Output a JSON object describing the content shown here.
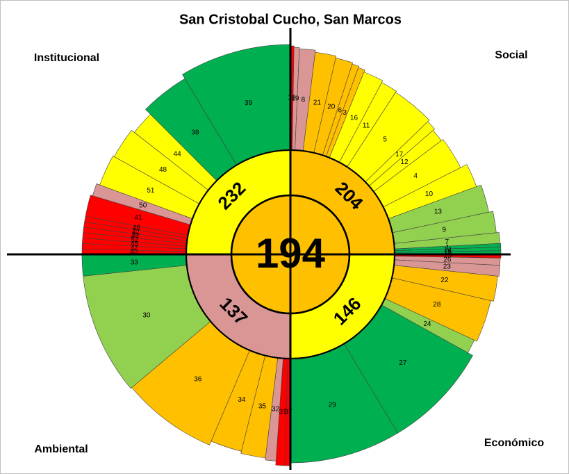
{
  "chart_data": {
    "type": "sunburst",
    "title": "San Cristobal Cucho, San Marcos",
    "center": {
      "value": 194,
      "color": "#ffc000"
    },
    "rlim": [
      0,
      310
    ],
    "quadrants": [
      {
        "name": "Social",
        "value": 204,
        "color": "#ffc000",
        "segments": [
          {
            "label": "18",
            "angle": 1,
            "value": 300,
            "color": "#ff0000"
          },
          {
            "label": "19",
            "angle": 1.5,
            "value": 298,
            "color": "#da9694"
          },
          {
            "label": "8",
            "angle": 4.5,
            "value": 296,
            "color": "#da9694"
          },
          {
            "label": "21",
            "angle": 6,
            "value": 293,
            "color": "#ffc000"
          },
          {
            "label": "20",
            "angle": 5,
            "value": 290,
            "color": "#ffc000"
          },
          {
            "label": "6",
            "angle": 2,
            "value": 288,
            "color": "#ffc000"
          },
          {
            "label": "3",
            "angle": 2,
            "value": 286,
            "color": "#ffc000"
          },
          {
            "label": "16",
            "angle": 6,
            "value": 283,
            "color": "#ffff00"
          },
          {
            "label": "11",
            "angle": 5,
            "value": 280,
            "color": "#ffff00"
          },
          {
            "label": "5",
            "angle": 13,
            "value": 278,
            "color": "#ffff00"
          },
          {
            "label": "17",
            "angle": 3,
            "value": 275,
            "color": "#ffff00"
          },
          {
            "label": "12",
            "angle": 4,
            "value": 272,
            "color": "#ffff00"
          },
          {
            "label": "4",
            "angle": 10,
            "value": 275,
            "color": "#ffff00"
          },
          {
            "label": "10",
            "angle": 7,
            "value": 285,
            "color": "#ffff00"
          },
          {
            "label": "13",
            "angle": 8,
            "value": 292,
            "color": "#92d050"
          },
          {
            "label": "9",
            "angle": 6,
            "value": 298,
            "color": "#92d050"
          },
          {
            "label": "7",
            "angle": 3,
            "value": 302,
            "color": "#92d050"
          },
          {
            "label": "1",
            "angle": 1,
            "value": 303,
            "color": "#00b050"
          },
          {
            "label": "14",
            "angle": 1,
            "value": 303,
            "color": "#00b050"
          },
          {
            "label": "15",
            "angle": 1,
            "value": 303,
            "color": "#00b050"
          }
        ]
      },
      {
        "name": "Económico",
        "value": 146,
        "color": "#ffff00",
        "segments": [
          {
            "label": "25",
            "angle": 1,
            "value": 303,
            "color": "#ff0000"
          },
          {
            "label": "26",
            "angle": 2,
            "value": 302,
            "color": "#da9694"
          },
          {
            "label": "23",
            "angle": 3,
            "value": 302,
            "color": "#da9694"
          },
          {
            "label": "22",
            "angle": 7,
            "value": 300,
            "color": "#ffc000"
          },
          {
            "label": "28",
            "angle": 12,
            "value": 296,
            "color": "#ffc000"
          },
          {
            "label": "24",
            "angle": 4,
            "value": 292,
            "color": "#92d050"
          },
          {
            "label": "27",
            "angle": 30,
            "value": 300,
            "color": "#00b050"
          },
          {
            "label": "29",
            "angle": 31,
            "value": 300,
            "color": "#00b050"
          }
        ]
      },
      {
        "name": "Ambiental",
        "value": 137,
        "color": "#da9694",
        "segments": [
          {
            "label": "37",
            "angle": 1.5,
            "value": 304,
            "color": "#ff0000"
          },
          {
            "label": "31",
            "angle": 2.5,
            "value": 304,
            "color": "#ff0000"
          },
          {
            "label": "32",
            "angle": 3,
            "value": 298,
            "color": "#da9694"
          },
          {
            "label": "35",
            "angle": 7,
            "value": 295,
            "color": "#ffc000"
          },
          {
            "label": "34",
            "angle": 9,
            "value": 292,
            "color": "#ffc000"
          },
          {
            "label": "36",
            "angle": 27,
            "value": 298,
            "color": "#ffc000"
          },
          {
            "label": "30",
            "angle": 34,
            "value": 300,
            "color": "#92d050"
          },
          {
            "label": "33",
            "angle": 6,
            "value": 300,
            "color": "#00b050"
          }
        ]
      },
      {
        "name": "Institucional",
        "value": 232,
        "color": "#ffff00",
        "segments": [
          {
            "label": "43",
            "angle": 1.5,
            "value": 300,
            "color": "#ff0000"
          },
          {
            "label": "47",
            "angle": 1.5,
            "value": 300,
            "color": "#ff0000"
          },
          {
            "label": "45",
            "angle": 1.5,
            "value": 300,
            "color": "#ff0000"
          },
          {
            "label": "52",
            "angle": 1.5,
            "value": 300,
            "color": "#ff0000"
          },
          {
            "label": "49",
            "angle": 1.5,
            "value": 300,
            "color": "#ff0000"
          },
          {
            "label": "42",
            "angle": 1.5,
            "value": 300,
            "color": "#ff0000"
          },
          {
            "label": "46",
            "angle": 1.5,
            "value": 300,
            "color": "#ff0000"
          },
          {
            "label": "41",
            "angle": 6,
            "value": 300,
            "color": "#ff0000"
          },
          {
            "label": "50",
            "angle": 3.5,
            "value": 297,
            "color": "#da9694"
          },
          {
            "label": "51",
            "angle": 9,
            "value": 292,
            "color": "#ffff00"
          },
          {
            "label": "48",
            "angle": 9,
            "value": 290,
            "color": "#ffff00"
          },
          {
            "label": "44",
            "angle": 7,
            "value": 285,
            "color": "#ffff00"
          },
          {
            "label": "38",
            "angle": 14,
            "value": 295,
            "color": "#00b050"
          },
          {
            "label": "39",
            "angle": 31,
            "value": 302,
            "color": "#00b050"
          }
        ]
      }
    ]
  }
}
